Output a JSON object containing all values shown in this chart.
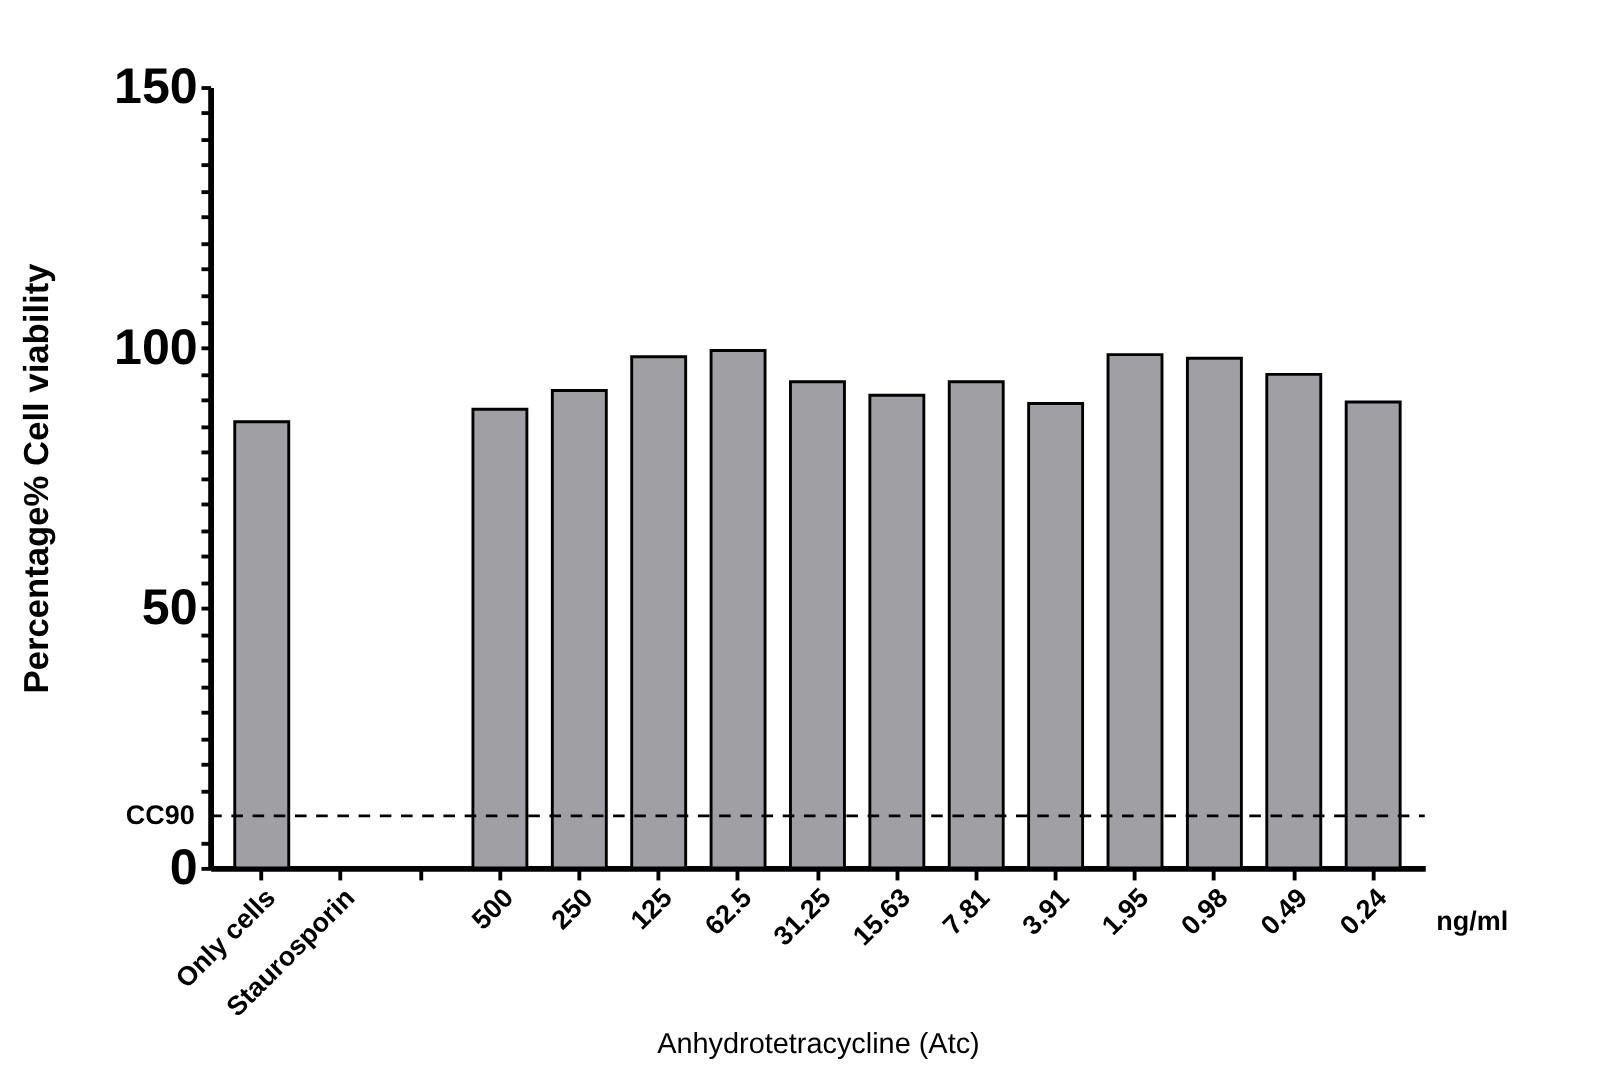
{
  "chart_data": {
    "type": "bar",
    "ylabel": "Percentage% Cell viability",
    "xlabel": "Anhydrotetracycline (Atc)",
    "categories": [
      "Only cells",
      "Staurosporin",
      null,
      "500",
      "250",
      "125",
      "62.5",
      "31.25",
      "15.63",
      "7.81",
      "3.91",
      "1.95",
      "0.98",
      "0.49",
      "0.24"
    ],
    "values": [
      85.7,
      null,
      null,
      88.1,
      91.7,
      98.2,
      99.4,
      93.4,
      90.8,
      93.4,
      89.2,
      98.6,
      97.9,
      94.8,
      89.5
    ],
    "color": "#a0a0a4",
    "ylim": [
      0,
      150
    ],
    "yticks": [
      0,
      {
        "value": 5,
        "label": null
      },
      {
        "value": 15,
        "label": null
      },
      {
        "value": 20,
        "label": null
      },
      {
        "value": 25,
        "label": null
      },
      {
        "value": 30,
        "label": null
      },
      {
        "value": 35,
        "label": null
      },
      {
        "value": 40,
        "label": null
      },
      {
        "value": 45,
        "label": null
      },
      50,
      {
        "value": 55,
        "label": null
      },
      {
        "value": 60,
        "label": null
      },
      {
        "value": 65,
        "label": null
      },
      {
        "value": 70,
        "label": null
      },
      {
        "value": 75,
        "label": null
      },
      {
        "value": 80,
        "label": null
      },
      {
        "value": 85,
        "label": null
      },
      {
        "value": 90,
        "label": null
      },
      {
        "value": 95,
        "label": null
      },
      100,
      {
        "value": 105,
        "label": null
      },
      {
        "value": 110,
        "label": null
      },
      {
        "value": 115,
        "label": null
      },
      {
        "value": 120,
        "label": null
      },
      {
        "value": 125,
        "label": null
      },
      {
        "value": 130,
        "label": null
      },
      {
        "value": 135,
        "label": null
      },
      {
        "value": 140,
        "label": null
      },
      {
        "value": 145,
        "label": null
      },
      150
    ],
    "ref_lines": [
      {
        "axis": "y",
        "value": 10,
        "label": "CC90",
        "line_style": "dashed",
        "color": "#000000"
      }
    ],
    "annotations": [
      "ng/ml"
    ],
    "grid": false
  }
}
